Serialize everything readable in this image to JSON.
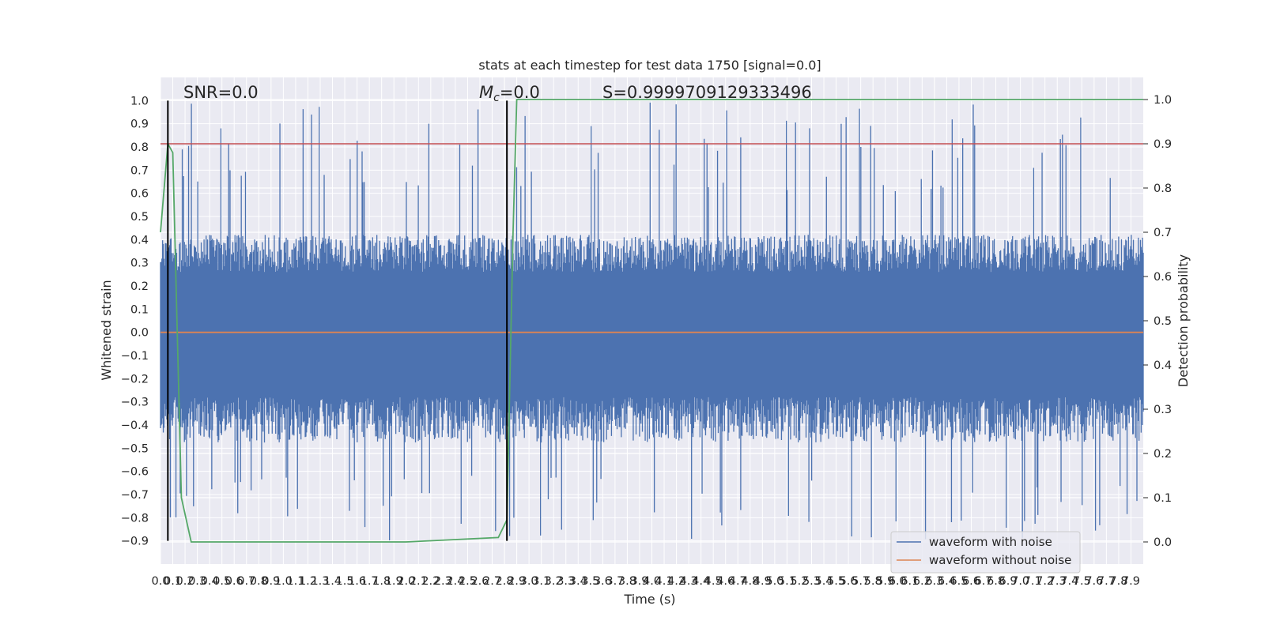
{
  "chart_data": {
    "type": "line",
    "title": "stats at each timestep for test data 1750 [signal=0.0]",
    "xlabel": "Time (s)",
    "ylabel": "Whitened strain",
    "y2label": "Detection probability",
    "xlim": [
      0.0,
      8.0
    ],
    "ylim": [
      -1.0,
      1.1
    ],
    "y2lim": [
      -0.05,
      1.05
    ],
    "grid": true,
    "legend_position": "bottom-right",
    "x_ticks": [
      "0.0",
      "0.1",
      "0.2",
      "0.3",
      "0.4",
      "0.5",
      "0.6",
      "0.7",
      "0.8",
      "0.9",
      "1.0",
      "1.1",
      "1.2",
      "1.3",
      "1.4",
      "1.5",
      "1.6",
      "1.7",
      "1.8",
      "1.9",
      "2.0",
      "2.1",
      "2.2",
      "2.3",
      "2.4",
      "2.5",
      "2.6",
      "2.7",
      "2.8",
      "2.9",
      "3.0",
      "3.1",
      "3.2",
      "3.3",
      "3.4",
      "3.5",
      "3.6",
      "3.7",
      "3.8",
      "3.9",
      "4.0",
      "4.1",
      "4.2",
      "4.3",
      "4.4",
      "4.5",
      "4.6",
      "4.7",
      "4.8",
      "4.9",
      "5.0",
      "5.1",
      "5.2",
      "5.3",
      "5.4",
      "5.5",
      "5.6",
      "5.7",
      "5.8",
      "5.9",
      "6.0",
      "6.1",
      "6.2",
      "6.3",
      "6.4",
      "6.5",
      "6.6",
      "6.7",
      "6.8",
      "6.9",
      "7.0",
      "7.1",
      "7.2",
      "7.3",
      "7.4",
      "7.5",
      "7.6",
      "7.7",
      "7.8",
      "7.9"
    ],
    "y_ticks": [
      "1.0",
      "0.9",
      "0.8",
      "0.7",
      "0.6",
      "0.5",
      "0.4",
      "0.3",
      "0.2",
      "0.1",
      "0.0",
      "−0.1",
      "−0.2",
      "−0.3",
      "−0.4",
      "−0.5",
      "−0.6",
      "−0.7",
      "−0.8",
      "−0.9"
    ],
    "y_tick_values": [
      1.0,
      0.9,
      0.8,
      0.7,
      0.6,
      0.5,
      0.4,
      0.3,
      0.2,
      0.1,
      0.0,
      -0.1,
      -0.2,
      -0.3,
      -0.4,
      -0.5,
      -0.6,
      -0.7,
      -0.8,
      -0.9
    ],
    "y2_ticks": [
      "1.0",
      "0.9",
      "0.8",
      "0.7",
      "0.6",
      "0.5",
      "0.4",
      "0.3",
      "0.2",
      "0.1",
      "0.0"
    ],
    "y2_tick_values": [
      1.0,
      0.9,
      0.8,
      0.7,
      0.6,
      0.5,
      0.4,
      0.3,
      0.2,
      0.1,
      0.0
    ],
    "annotations": {
      "snr": "SNR=0.0",
      "mc": "=0.0",
      "mc_symbol": "M",
      "mc_subscript": "c",
      "s": "S=0.9999709129333496"
    },
    "threshold": {
      "axis": "y2",
      "value": 0.9,
      "color": "#c44e52"
    },
    "vertical_lines": [
      0.06,
      2.82
    ],
    "series": [
      {
        "name": "waveform with noise",
        "color": "#4c72b0",
        "axis": "y",
        "envelope_pos": 0.4,
        "envelope_neg": -0.45,
        "peak_max": 1.0,
        "peak_min": -0.9
      },
      {
        "name": "waveform without noise",
        "color": "#dd8452",
        "axis": "y",
        "constant": 0.0
      },
      {
        "name": "detection probability",
        "color": "#55a868",
        "axis": "y2",
        "x": [
          0.0,
          0.06,
          0.1,
          0.17,
          0.25,
          0.3,
          1.0,
          2.0,
          2.75,
          2.82,
          2.87,
          2.9,
          3.5,
          5.0,
          8.0
        ],
        "y": [
          0.7,
          0.9,
          0.88,
          0.1,
          0.0,
          0.0,
          0.0,
          0.0,
          0.01,
          0.05,
          0.7,
          1.0,
          1.0,
          1.0,
          1.0
        ]
      }
    ]
  }
}
